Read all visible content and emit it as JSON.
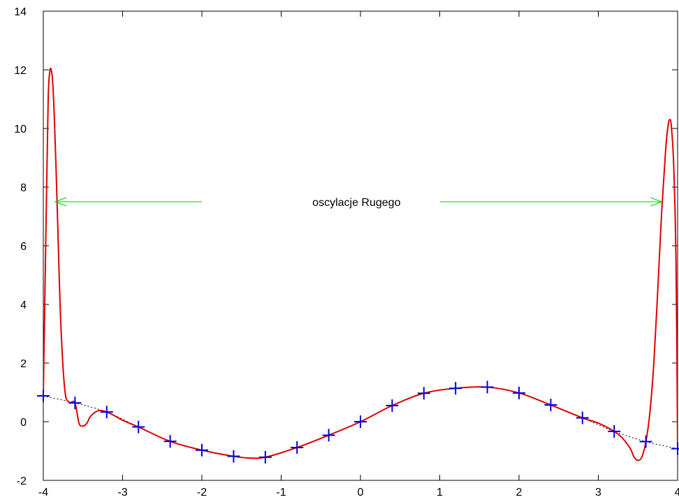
{
  "chart_data": {
    "type": "line",
    "title": "",
    "xlabel": "",
    "ylabel": "",
    "xlim": [
      -4,
      4
    ],
    "ylim": [
      -2,
      14
    ],
    "x_ticks": [
      "-4",
      "-3",
      "-2",
      "-1",
      "0",
      "1",
      "2",
      "3",
      "4"
    ],
    "y_ticks": [
      "-2",
      "0",
      "2",
      "4",
      "6",
      "8",
      "10",
      "12",
      "14"
    ],
    "grid": false,
    "legend": "none",
    "colors": {
      "interpolant": "#e00000",
      "nodes": "#0000e0",
      "function": "#000000",
      "annotation": "#00cc00"
    },
    "series": [
      {
        "style": "dotted-black",
        "x": [
          -4.0,
          -3.6,
          -3.2,
          -2.8,
          -2.4,
          -2.0,
          -1.6,
          -1.2,
          -0.8,
          -0.4,
          0.0,
          0.4,
          0.8,
          1.2,
          1.6,
          2.0,
          2.4,
          2.8,
          3.2,
          3.6,
          4.0
        ],
        "y": [
          0.88,
          0.64,
          0.33,
          -0.18,
          -0.67,
          -0.97,
          -1.18,
          -1.21,
          -0.88,
          -0.46,
          0.0,
          0.55,
          0.97,
          1.14,
          1.18,
          0.98,
          0.57,
          0.13,
          -0.33,
          -0.68,
          -0.92
        ]
      },
      {
        "style": "solid-red",
        "x": [
          -4.0,
          -3.97,
          -3.94,
          -3.92,
          -3.9,
          -3.88,
          -3.86,
          -3.84,
          -3.82,
          -3.8,
          -3.78,
          -3.75,
          -3.72,
          -3.69,
          -3.66,
          -3.6,
          -3.55,
          -3.5,
          -3.45,
          -3.4,
          -3.3,
          -3.2,
          -3.1,
          -3.0,
          -2.8,
          -2.4,
          -2.0,
          -1.6,
          -1.4,
          -1.2,
          -0.8,
          -0.4,
          0.0,
          0.4,
          0.8,
          1.2,
          1.6,
          2.0,
          2.4,
          2.8,
          3.0,
          3.2,
          3.3,
          3.4,
          3.45,
          3.5,
          3.55,
          3.6,
          3.65,
          3.7,
          3.75,
          3.8,
          3.85,
          3.88,
          3.9,
          3.92,
          3.95,
          3.98,
          4.0
        ],
        "y": [
          0.9,
          6.0,
          10.8,
          11.9,
          12.0,
          11.5,
          10.3,
          8.7,
          6.9,
          5.0,
          3.4,
          1.8,
          0.9,
          0.7,
          0.65,
          0.64,
          -0.05,
          -0.15,
          -0.05,
          0.2,
          0.38,
          0.33,
          0.2,
          0.05,
          -0.18,
          -0.67,
          -0.97,
          -1.18,
          -1.24,
          -1.21,
          -0.88,
          -0.46,
          0.0,
          0.55,
          0.97,
          1.14,
          1.18,
          0.98,
          0.57,
          0.13,
          -0.05,
          -0.33,
          -0.55,
          -0.9,
          -1.2,
          -1.32,
          -1.2,
          -0.68,
          0.3,
          2.0,
          4.5,
          7.2,
          9.3,
          10.1,
          10.3,
          10.1,
          8.8,
          5.5,
          -0.92
        ]
      }
    ],
    "markers": {
      "symbol": "+",
      "x": [
        -4.0,
        -3.6,
        -3.2,
        -2.8,
        -2.4,
        -2.0,
        -1.6,
        -1.2,
        -0.8,
        -0.4,
        0.0,
        0.4,
        0.8,
        1.2,
        1.6,
        2.0,
        2.4,
        2.8,
        3.2,
        3.6,
        4.0
      ],
      "y": [
        0.88,
        0.64,
        0.33,
        -0.18,
        -0.67,
        -0.97,
        -1.18,
        -1.21,
        -0.88,
        -0.46,
        0.0,
        0.55,
        0.97,
        1.14,
        1.18,
        0.98,
        0.57,
        0.13,
        -0.33,
        -0.68,
        -0.92
      ]
    },
    "annotation": {
      "text": "oscylacje Rugego",
      "y": 7.5,
      "arrow_left_x": [
        -3.85,
        -2.0
      ],
      "arrow_right_x": [
        1.0,
        3.8
      ],
      "text_x": -0.05
    }
  }
}
